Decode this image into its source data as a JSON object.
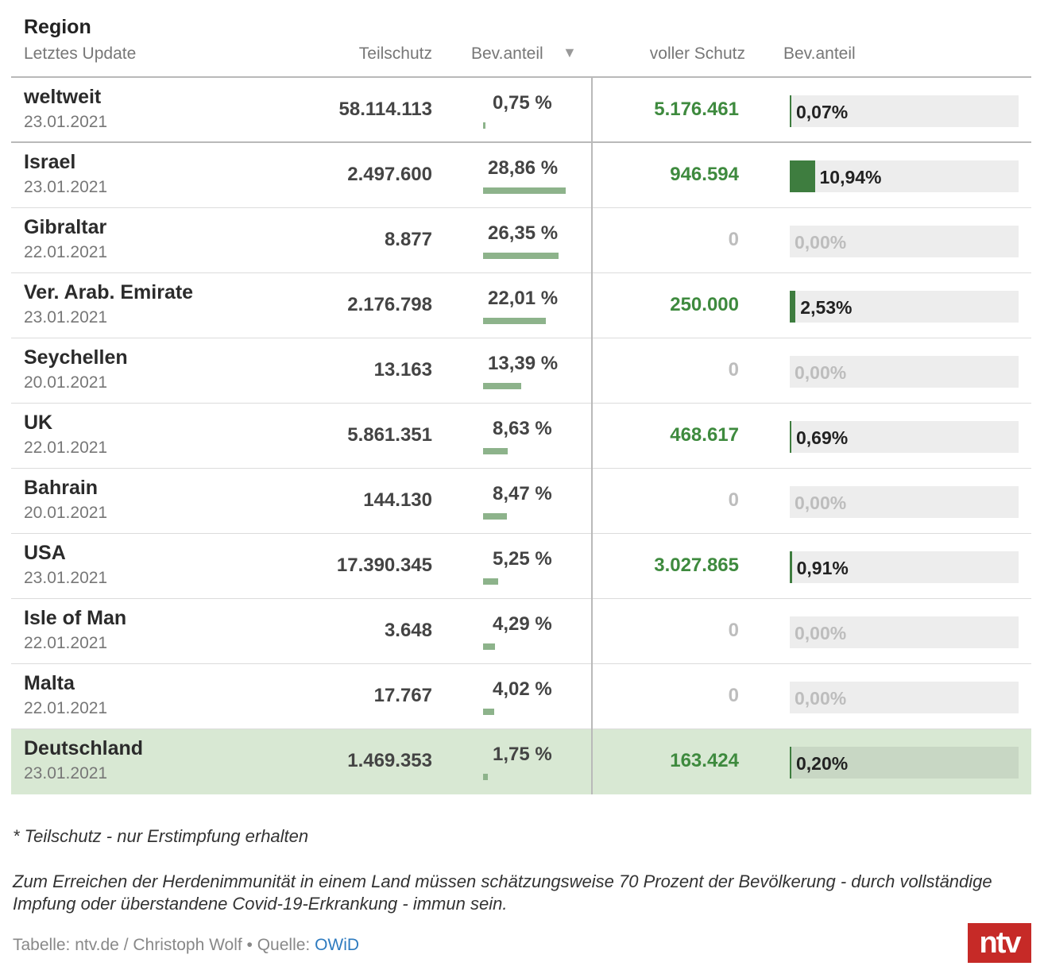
{
  "header": {
    "region": "Region",
    "update": "Letztes Update",
    "teilschutz": "Teilschutz",
    "bevanteil1": "Bev.anteil",
    "sort_arrow": "▼",
    "voller_schutz": "voller Schutz",
    "bevanteil2": "Bev.anteil"
  },
  "rows": [
    {
      "name": "weltweit",
      "date": "23.01.2021",
      "teil": "58.114.113",
      "pct": "0,75 %",
      "pct_value": 0.75,
      "voll": "5.176.461",
      "voll_zero": false,
      "bev": "0,07%",
      "bev_value": 0.07
    },
    {
      "name": "Israel",
      "date": "23.01.2021",
      "teil": "2.497.600",
      "pct": "28,86 %",
      "pct_value": 28.86,
      "voll": "946.594",
      "voll_zero": false,
      "bev": "10,94%",
      "bev_value": 10.94
    },
    {
      "name": "Gibraltar",
      "date": "22.01.2021",
      "teil": "8.877",
      "pct": "26,35 %",
      "pct_value": 26.35,
      "voll": "0",
      "voll_zero": true,
      "bev": "0,00%",
      "bev_value": 0
    },
    {
      "name": "Ver. Arab. Emirate",
      "date": "23.01.2021",
      "teil": "2.176.798",
      "pct": "22,01 %",
      "pct_value": 22.01,
      "voll": "250.000",
      "voll_zero": false,
      "bev": "2,53%",
      "bev_value": 2.53
    },
    {
      "name": "Seychellen",
      "date": "20.01.2021",
      "teil": "13.163",
      "pct": "13,39 %",
      "pct_value": 13.39,
      "voll": "0",
      "voll_zero": true,
      "bev": "0,00%",
      "bev_value": 0
    },
    {
      "name": "UK",
      "date": "22.01.2021",
      "teil": "5.861.351",
      "pct": "8,63 %",
      "pct_value": 8.63,
      "voll": "468.617",
      "voll_zero": false,
      "bev": "0,69%",
      "bev_value": 0.69
    },
    {
      "name": "Bahrain",
      "date": "20.01.2021",
      "teil": "144.130",
      "pct": "8,47 %",
      "pct_value": 8.47,
      "voll": "0",
      "voll_zero": true,
      "bev": "0,00%",
      "bev_value": 0
    },
    {
      "name": "USA",
      "date": "23.01.2021",
      "teil": "17.390.345",
      "pct": "5,25 %",
      "pct_value": 5.25,
      "voll": "3.027.865",
      "voll_zero": false,
      "bev": "0,91%",
      "bev_value": 0.91
    },
    {
      "name": "Isle of Man",
      "date": "22.01.2021",
      "teil": "3.648",
      "pct": "4,29 %",
      "pct_value": 4.29,
      "voll": "0",
      "voll_zero": true,
      "bev": "0,00%",
      "bev_value": 0
    },
    {
      "name": "Malta",
      "date": "22.01.2021",
      "teil": "17.767",
      "pct": "4,02 %",
      "pct_value": 4.02,
      "voll": "0",
      "voll_zero": true,
      "bev": "0,00%",
      "bev_value": 0
    },
    {
      "name": "Deutschland",
      "date": "23.01.2021",
      "teil": "1.469.353",
      "pct": "1,75 %",
      "pct_value": 1.75,
      "voll": "163.424",
      "voll_zero": false,
      "bev": "0,20%",
      "bev_value": 0.2
    }
  ],
  "notes": {
    "teilschutz": "* Teilschutz - nur Erstimpfung erhalten",
    "herd": "Zum Erreichen der Herdenimmunität in einem Land müssen schätzungsweise 70 Prozent der Bevölkerung - durch vollständige Impfung oder überstandene Covid-19-Erkrankung - immun sein."
  },
  "source": {
    "prefix": "Tabelle: ntv.de / Christoph Wolf • Quelle: ",
    "link": "OWiD"
  },
  "logo": "ntv",
  "colors": {
    "bar_partial": "#8db38b",
    "bar_full": "#3e7d3f",
    "full_text": "#3e8a3e",
    "highlight_row": "#d8e8d3",
    "logo_red": "#c62a27",
    "link": "#2e7bbf"
  }
}
